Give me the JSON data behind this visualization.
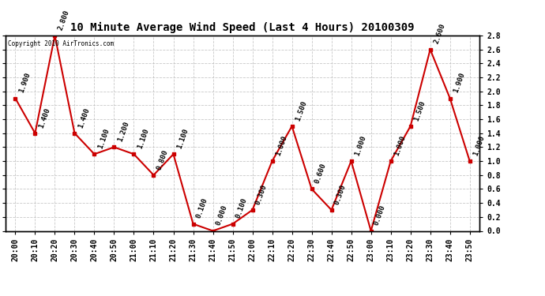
{
  "title": "10 Minute Average Wind Speed (Last 4 Hours) 20100309",
  "copyright": "Copyright 2010 AirTronics.com",
  "times": [
    "20:00",
    "20:10",
    "20:20",
    "20:30",
    "20:40",
    "20:50",
    "21:00",
    "21:10",
    "21:20",
    "21:30",
    "21:40",
    "21:50",
    "22:00",
    "22:10",
    "22:20",
    "22:30",
    "22:40",
    "22:50",
    "23:00",
    "23:10",
    "23:20",
    "23:30",
    "23:40",
    "23:50"
  ],
  "values": [
    1.9,
    1.4,
    2.8,
    1.4,
    1.1,
    1.2,
    1.1,
    0.8,
    1.1,
    0.1,
    0.0,
    0.1,
    0.3,
    1.0,
    1.5,
    0.6,
    0.3,
    1.0,
    0.0,
    1.0,
    1.5,
    2.6,
    1.9,
    1.0
  ],
  "ylim": [
    0.0,
    2.8
  ],
  "line_color": "#cc0000",
  "marker_color": "#cc0000",
  "bg_color": "#ffffff",
  "grid_color": "#bbbbbb",
  "title_color": "#000000",
  "label_color": "#000000",
  "title_fontsize": 10,
  "tick_fontsize": 7,
  "annotation_fontsize": 6.5
}
